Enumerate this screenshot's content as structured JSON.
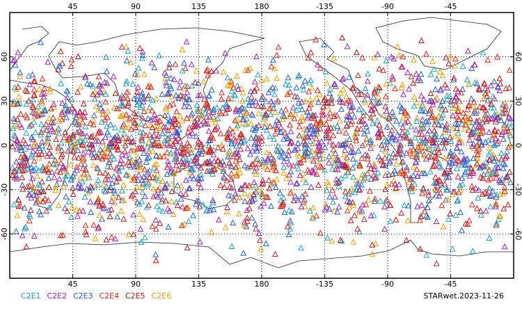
{
  "map": {
    "xlim": [
      0,
      360
    ],
    "xticks": [
      45,
      90,
      135,
      180,
      {
        "value": 225,
        "label": "-135"
      },
      {
        "value": 270,
        "label": "-90"
      },
      {
        "value": 315,
        "label": "-45"
      }
    ],
    "ylim": [
      -90,
      90
    ],
    "yticks": [
      -60,
      -30,
      0,
      30,
      60
    ],
    "grid": true,
    "series": [
      {
        "name": "C2E1",
        "color": "#19a3c8"
      },
      {
        "name": "C2E2",
        "color": "#a020c8"
      },
      {
        "name": "C2E3",
        "color": "#1e5fdc"
      },
      {
        "name": "C2E4",
        "color": "#e8241c"
      },
      {
        "name": "C2E5",
        "color": "#c81414"
      },
      {
        "name": "C2E6",
        "color": "#f0a000"
      }
    ],
    "title": "STARwet.2023-11-26"
  }
}
